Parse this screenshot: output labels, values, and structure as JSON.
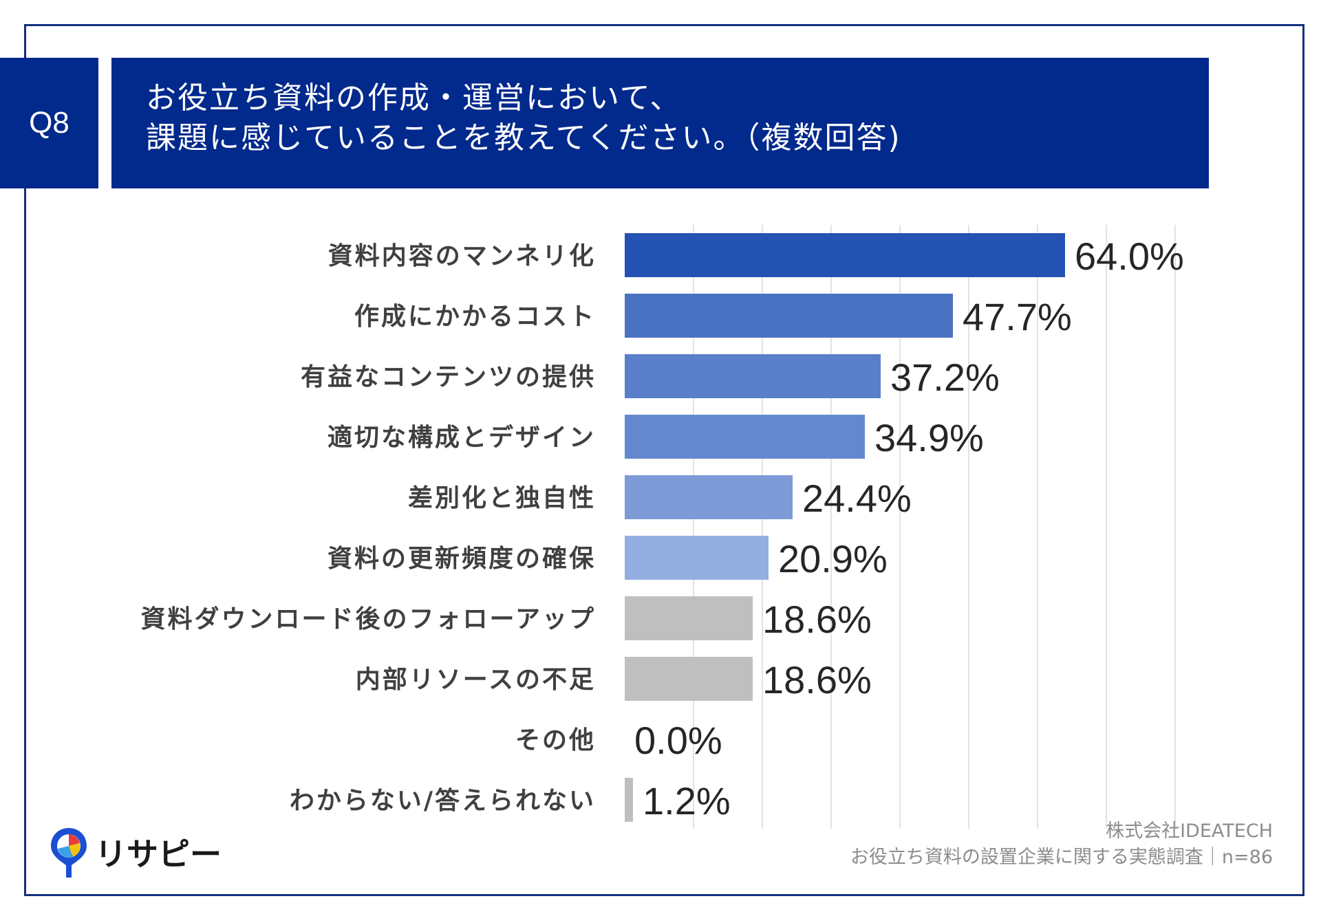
{
  "header": {
    "question_label": "Q8",
    "title_line1": "お役立ち資料の作成・運営において、",
    "title_line2": "課題に感じていることを教えてください。（複数回答)"
  },
  "footer": {
    "company": "株式会社IDEATECH",
    "survey": "お役立ち資料の設置企業に関する実態調査｜n=86"
  },
  "logo": {
    "text": "リサピー",
    "icon": "pin-logo-icon"
  },
  "colors": {
    "brand": "#02298c",
    "frame": "#12307f",
    "grey_bar": "#bfbfbf"
  },
  "chart_data": {
    "type": "bar",
    "orientation": "horizontal",
    "categories": [
      "資料内容のマンネリ化",
      "作成にかかるコスト",
      "有益なコンテンツの提供",
      "適切な構成とデザイン",
      "差別化と独自性",
      "資料の更新頻度の確保",
      "資料ダウンロード後のフォローアップ",
      "内部リソースの不足",
      "その他",
      "わからない/答えられない"
    ],
    "values": [
      64.0,
      47.7,
      37.2,
      34.9,
      24.4,
      20.9,
      18.6,
      18.6,
      0.0,
      1.2
    ],
    "value_labels": [
      "64.0%",
      "47.7%",
      "37.2%",
      "34.9%",
      "24.4%",
      "20.9%",
      "18.6%",
      "18.6%",
      "0.0%",
      "1.2%"
    ],
    "bar_colors": [
      "#2453b4",
      "#4a72c3",
      "#5a7fca",
      "#6488cd",
      "#7d9bd6",
      "#93aee0",
      "#bfbfbf",
      "#bfbfbf",
      "#bfbfbf",
      "#bfbfbf"
    ],
    "xlim": [
      0,
      80
    ],
    "grid": true
  }
}
